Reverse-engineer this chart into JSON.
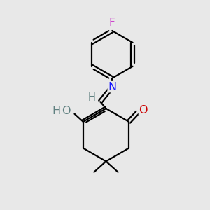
{
  "bg_color": "#e8e8e8",
  "atom_colors": {
    "C": "#000000",
    "H": "#5f8080",
    "O_ketone": "#cc0000",
    "O_enol": "#5f8080",
    "N": "#1a1aff",
    "F": "#cc44cc"
  },
  "bond_color": "#000000",
  "bond_width": 1.6,
  "figsize": [
    3.0,
    3.0
  ],
  "dpi": 100,
  "xlim": [
    0,
    10
  ],
  "ylim": [
    0,
    10
  ]
}
